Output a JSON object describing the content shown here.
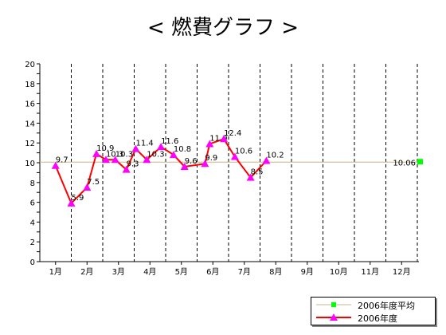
{
  "title": "< 燃費グラフ >",
  "chart_data": {
    "type": "line",
    "x_ticks": [
      "1月",
      "2月",
      "3月",
      "4月",
      "5月",
      "6月",
      "7月",
      "8月",
      "9月",
      "10月",
      "11月",
      "12月"
    ],
    "ylim": [
      0,
      20
    ],
    "y_ticks": [
      0,
      2,
      4,
      6,
      8,
      10,
      12,
      14,
      16,
      18,
      20
    ],
    "grid": "vertical dashed lines at month boundaries",
    "legend_position": "bottom-right",
    "series": [
      {
        "name": "2006年度",
        "color": "#ff0000",
        "marker_color": "#ff00ff",
        "points": [
          {
            "x": 1.0,
            "y": 9.7,
            "label": "9.7"
          },
          {
            "x": 1.5,
            "y": 5.9,
            "label": "5.9"
          },
          {
            "x": 2.0,
            "y": 7.5,
            "label": "7.5"
          },
          {
            "x": 2.3,
            "y": 10.9,
            "label": "10.9"
          },
          {
            "x": 2.6,
            "y": 10.3,
            "label": "10.3"
          },
          {
            "x": 2.9,
            "y": 10.3,
            "label": "10.3"
          },
          {
            "x": 3.25,
            "y": 9.3,
            "label": "9.3"
          },
          {
            "x": 3.55,
            "y": 11.4,
            "label": "11.4"
          },
          {
            "x": 3.9,
            "y": 10.3,
            "label": "10.3"
          },
          {
            "x": 4.35,
            "y": 11.6,
            "label": "11.6"
          },
          {
            "x": 4.75,
            "y": 10.8,
            "label": "10.8"
          },
          {
            "x": 5.1,
            "y": 9.6,
            "label": "9.6"
          },
          {
            "x": 5.75,
            "y": 9.9,
            "label": "9.9"
          },
          {
            "x": 5.9,
            "y": 11.9,
            "label": "11.9"
          },
          {
            "x": 6.35,
            "y": 12.4,
            "label": "12.4"
          },
          {
            "x": 6.7,
            "y": 10.6,
            "label": "10.6"
          },
          {
            "x": 7.2,
            "y": 8.5,
            "label": "8.5"
          },
          {
            "x": 7.7,
            "y": 10.2,
            "label": "10.2"
          }
        ]
      },
      {
        "name": "2006年度平均",
        "color": "#c8b48c",
        "marker_color": "#00ff00",
        "value": 10.06,
        "label": "10.06"
      }
    ]
  }
}
